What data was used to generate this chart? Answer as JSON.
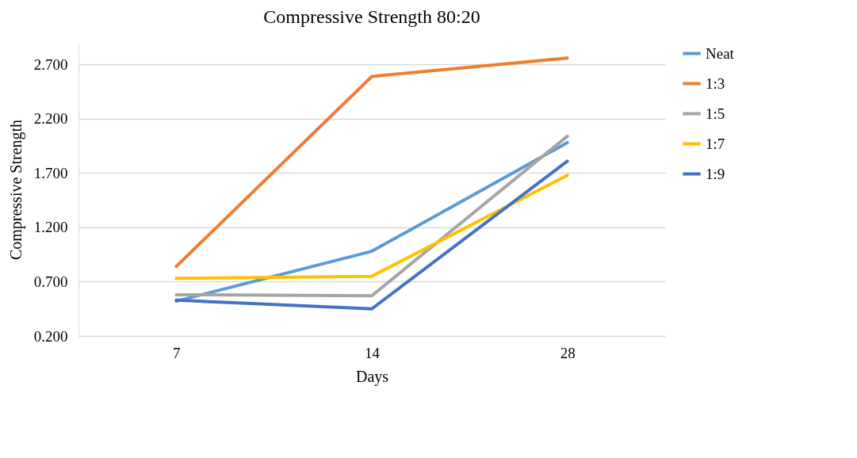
{
  "chart_data": {
    "type": "line",
    "title": "Compressive Strength 80:20",
    "xlabel": "Days",
    "ylabel": "Compressive Strength",
    "categories": [
      "7",
      "14",
      "28"
    ],
    "series": [
      {
        "name": "Neat",
        "color": "#5b9bd5",
        "values": [
          0.52,
          0.98,
          1.98
        ]
      },
      {
        "name": "1:3",
        "color": "#ed7d31",
        "values": [
          0.84,
          2.59,
          2.76
        ]
      },
      {
        "name": "1:5",
        "color": "#a5a5a5",
        "values": [
          0.58,
          0.57,
          2.04
        ]
      },
      {
        "name": "1:7",
        "color": "#ffc000",
        "values": [
          0.73,
          0.75,
          1.68
        ]
      },
      {
        "name": "1:9",
        "color": "#4472c4",
        "values": [
          0.53,
          0.45,
          1.81
        ]
      }
    ],
    "ylim": [
      0.2,
      2.9
    ],
    "yticks": [
      {
        "value": 0.2,
        "label": "0.200"
      },
      {
        "value": 0.7,
        "label": "0.700"
      },
      {
        "value": 1.2,
        "label": "1.200"
      },
      {
        "value": 1.7,
        "label": "1.700"
      },
      {
        "value": 2.2,
        "label": "2.200"
      },
      {
        "value": 2.7,
        "label": "2.700"
      }
    ],
    "grid": "y",
    "legend": "right",
    "marker": "none",
    "line_style": "solid"
  }
}
